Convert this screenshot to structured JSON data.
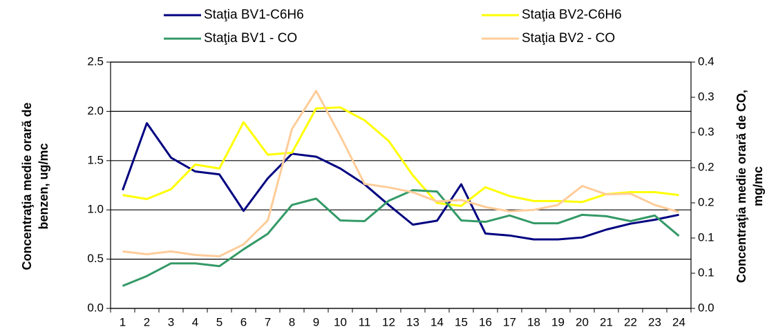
{
  "chart_data": {
    "type": "line",
    "categories": [
      "1",
      "2",
      "3",
      "4",
      "5",
      "6",
      "7",
      "8",
      "9",
      "10",
      "11",
      "12",
      "13",
      "14",
      "15",
      "16",
      "17",
      "18",
      "19",
      "20",
      "21",
      "22",
      "23",
      "24"
    ],
    "series": [
      {
        "name": "Staţia BV1-C6H6",
        "color": "#000080",
        "values": [
          1.2,
          1.88,
          1.53,
          1.39,
          1.36,
          0.99,
          1.32,
          1.57,
          1.54,
          1.42,
          1.26,
          1.05,
          0.85,
          0.89,
          1.26,
          0.76,
          0.74,
          0.7,
          0.7,
          0.72,
          0.8,
          0.86,
          0.9,
          0.95
        ]
      },
      {
        "name": "Staţia BV2-C6H6",
        "color": "#ffff00",
        "values": [
          1.15,
          1.11,
          1.21,
          1.46,
          1.42,
          1.89,
          1.56,
          1.58,
          2.03,
          2.04,
          1.91,
          1.7,
          1.35,
          1.07,
          1.04,
          1.23,
          1.14,
          1.09,
          1.09,
          1.08,
          1.16,
          1.18,
          1.18,
          1.15
        ]
      },
      {
        "name": "Staţia BV1 - CO",
        "color": "#339966",
        "axis": "y2",
        "values": [
          0.032,
          0.046,
          0.064,
          0.064,
          0.06,
          0.084,
          0.106,
          0.147,
          0.156,
          0.125,
          0.124,
          0.153,
          0.168,
          0.166,
          0.125,
          0.123,
          0.132,
          0.121,
          0.121,
          0.133,
          0.131,
          0.124,
          0.132,
          0.103
        ]
      },
      {
        "name": "Staţia BV2 - CO",
        "color": "#ffcc99",
        "axis": "y2",
        "values": [
          0.081,
          0.077,
          0.081,
          0.076,
          0.074,
          0.091,
          0.125,
          0.255,
          0.309,
          0.245,
          0.177,
          0.172,
          0.165,
          0.152,
          0.154,
          0.144,
          0.138,
          0.14,
          0.147,
          0.174,
          0.162,
          0.163,
          0.147,
          0.137
        ]
      }
    ],
    "ylabel": [
      "Concentraţia medie orară de",
      "benzen, ug/mc"
    ],
    "y2label": [
      "Concentraţia medie orară de CO,",
      "mg/mc"
    ],
    "ylim": [
      0,
      2.5
    ],
    "yticks": [
      {
        "value": 0,
        "label": "0.0"
      },
      {
        "value": 0.5,
        "label": "0.5"
      },
      {
        "value": 1,
        "label": "1.0"
      },
      {
        "value": 1.5,
        "label": "1.5"
      },
      {
        "value": 2,
        "label": "2.0"
      },
      {
        "value": 2.5,
        "label": "2.5"
      }
    ],
    "y2lim": [
      0,
      0.35
    ],
    "y2ticks": [
      {
        "value": 0,
        "label": "0.0"
      },
      {
        "value": 0.05,
        "label": "0.1"
      },
      {
        "value": 0.1,
        "label": "0.1"
      },
      {
        "value": 0.15,
        "label": "0.2"
      },
      {
        "value": 0.2,
        "label": "0.2"
      },
      {
        "value": 0.25,
        "label": "0.3"
      },
      {
        "value": 0.3,
        "label": "0.3"
      },
      {
        "value": 0.35,
        "label": "0.4"
      }
    ],
    "grid": true
  }
}
